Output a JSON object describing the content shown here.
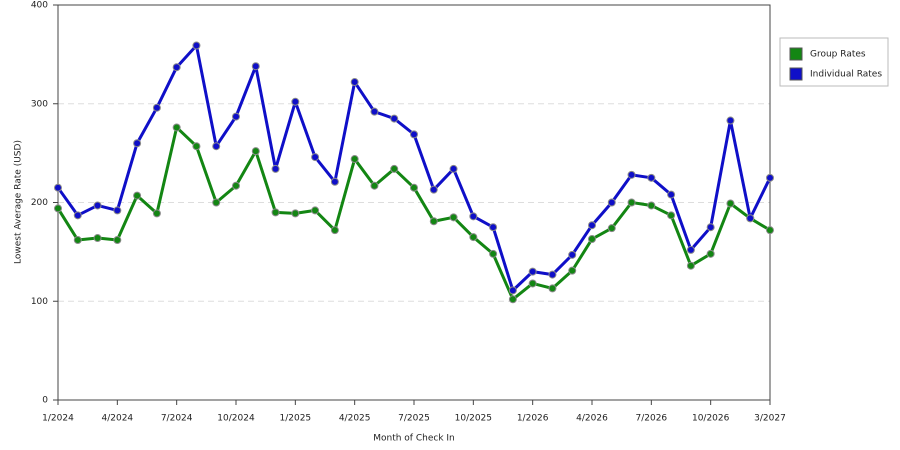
{
  "chart_data": {
    "type": "line",
    "xlabel": "Month of Check In",
    "ylabel": "Lowest Average Rate (USD)",
    "categories": [
      "1/2024",
      null,
      null,
      "4/2024",
      null,
      null,
      "7/2024",
      null,
      null,
      "10/2024",
      null,
      null,
      "1/2025",
      null,
      null,
      "4/2025",
      null,
      null,
      "7/2025",
      null,
      null,
      "10/2025",
      null,
      null,
      "1/2026",
      null,
      null,
      "4/2026",
      null,
      null,
      "7/2026",
      null,
      null,
      "10/2026",
      null,
      null,
      "3/2027"
    ],
    "series": [
      {
        "name": "Group Rates",
        "color": "#138613",
        "values": [
          194,
          162,
          164,
          162,
          207,
          189,
          276,
          257,
          200,
          217,
          252,
          190,
          189,
          192,
          172,
          244,
          217,
          234,
          215,
          181,
          185,
          165,
          148,
          102,
          118,
          113,
          131,
          163,
          174,
          200,
          197,
          187,
          136,
          148,
          199,
          184,
          172
        ]
      },
      {
        "name": "Individual Rates",
        "color": "#0f0fc8",
        "values": [
          215,
          187,
          197,
          192,
          260,
          296,
          337,
          359,
          257,
          287,
          338,
          234,
          302,
          246,
          221,
          322,
          292,
          285,
          269,
          213,
          234,
          186,
          175,
          111,
          130,
          127,
          147,
          177,
          200,
          228,
          225,
          208,
          152,
          175,
          283,
          184,
          225
        ]
      }
    ],
    "ylim": [
      0,
      400
    ],
    "yticks": [
      0,
      100,
      200,
      300,
      400
    ],
    "grid": true,
    "legend": "right"
  }
}
